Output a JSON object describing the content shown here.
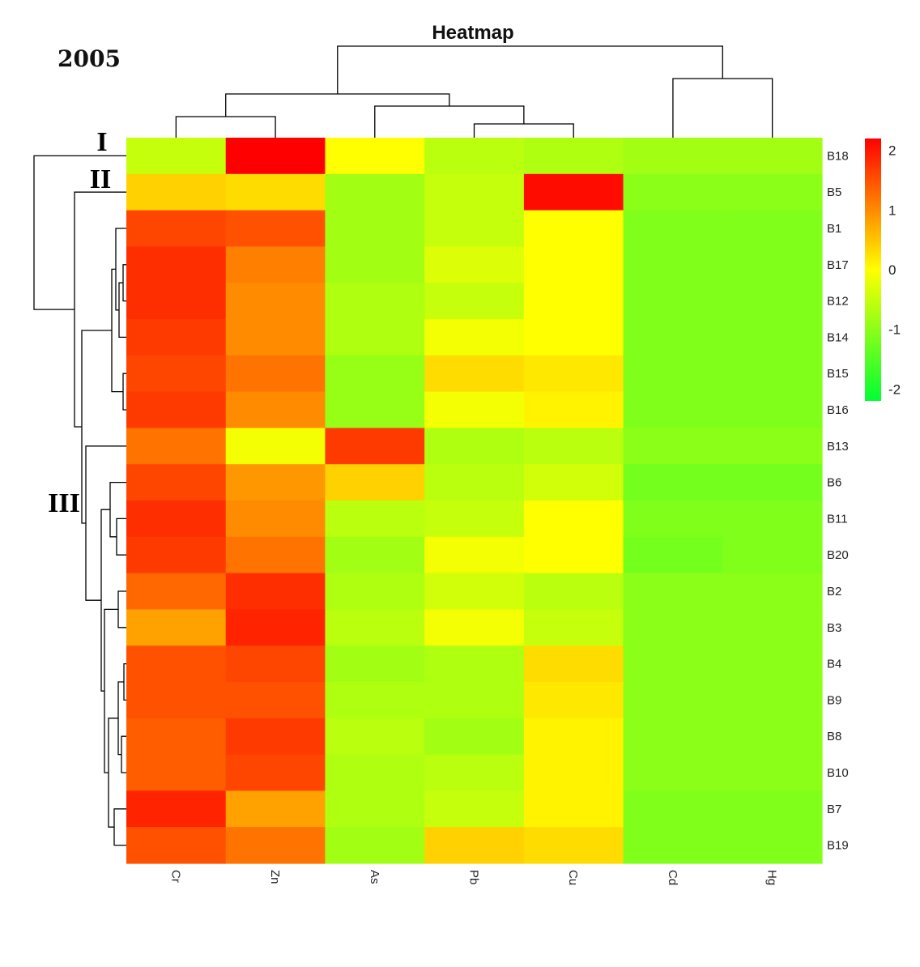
{
  "header": {
    "year_label": "2005",
    "cluster_labels": [
      "I",
      "II",
      "III"
    ]
  },
  "chart_data": {
    "type": "heatmap",
    "title": "Heatmap",
    "columns": [
      "Cr",
      "Zn",
      "As",
      "Pb",
      "Cu",
      "Cd",
      "Hg"
    ],
    "rows": [
      "B18",
      "B5",
      "B1",
      "B17",
      "B12",
      "B14",
      "B15",
      "B16",
      "B13",
      "B6",
      "B11",
      "B20",
      "B2",
      "B3",
      "B4",
      "B9",
      "B8",
      "B10",
      "B7",
      "B19"
    ],
    "values": [
      [
        -0.5,
        2.2,
        0.0,
        -0.6,
        -0.7,
        -0.8,
        -0.8
      ],
      [
        0.4,
        0.3,
        -0.8,
        -0.5,
        2.1,
        -1.0,
        -1.0
      ],
      [
        1.6,
        1.5,
        -0.8,
        -0.5,
        0.0,
        -1.1,
        -1.1
      ],
      [
        1.8,
        1.1,
        -0.8,
        -0.3,
        0.0,
        -1.1,
        -1.1
      ],
      [
        1.8,
        1.0,
        -0.7,
        -0.5,
        0.0,
        -1.1,
        -1.1
      ],
      [
        1.7,
        1.0,
        -0.7,
        -0.1,
        0.0,
        -1.1,
        -1.1
      ],
      [
        1.6,
        1.2,
        -0.9,
        0.3,
        0.2,
        -1.1,
        -1.1
      ],
      [
        1.7,
        1.0,
        -0.9,
        -0.1,
        0.1,
        -1.1,
        -1.1
      ],
      [
        1.2,
        -0.1,
        1.7,
        -0.7,
        -0.6,
        -1.0,
        -1.0
      ],
      [
        1.6,
        0.9,
        0.4,
        -0.6,
        -0.4,
        -1.2,
        -1.2
      ],
      [
        1.8,
        1.0,
        -0.6,
        -0.5,
        0.0,
        -1.1,
        -1.1
      ],
      [
        1.7,
        1.2,
        -0.8,
        -0.1,
        0.0,
        -1.2,
        -1.1
      ],
      [
        1.3,
        1.8,
        -0.7,
        -0.4,
        -0.6,
        -1.0,
        -1.0
      ],
      [
        0.8,
        1.9,
        -0.6,
        -0.1,
        -0.5,
        -1.0,
        -1.0
      ],
      [
        1.5,
        1.6,
        -0.8,
        -0.7,
        0.3,
        -1.0,
        -1.0
      ],
      [
        1.5,
        1.5,
        -0.7,
        -0.7,
        0.2,
        -1.0,
        -1.0
      ],
      [
        1.4,
        1.7,
        -0.6,
        -0.8,
        0.1,
        -1.0,
        -1.0
      ],
      [
        1.4,
        1.6,
        -0.7,
        -0.6,
        0.1,
        -1.0,
        -1.0
      ],
      [
        1.9,
        0.8,
        -0.7,
        -0.5,
        0.1,
        -1.1,
        -1.1
      ],
      [
        1.5,
        1.2,
        -0.8,
        0.4,
        0.3,
        -1.1,
        -1.1
      ]
    ],
    "colorbar": {
      "min": -2.2,
      "max": 2.2,
      "ticks": [
        2,
        1,
        0,
        -1,
        -2
      ],
      "colors": [
        "#00ff33",
        "#ffff00",
        "#ff0000"
      ]
    }
  }
}
